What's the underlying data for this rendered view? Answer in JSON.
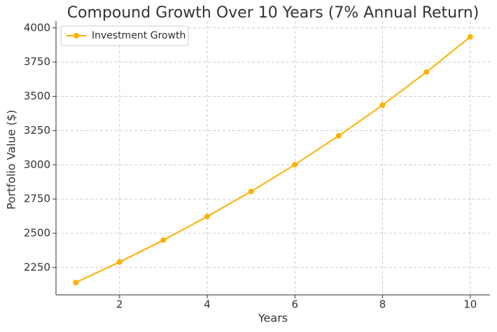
{
  "chart_data": {
    "type": "line",
    "title": "Compound Growth Over 10 Years (7% Annual Return)",
    "x_label": "Years",
    "y_label": "Portfolio Value ($)",
    "x": [
      1,
      2,
      3,
      4,
      5,
      6,
      7,
      8,
      9,
      10
    ],
    "series": [
      {
        "name": "Investment Growth",
        "color": "#ffb000",
        "values": [
          2140,
          2290,
          2450,
          2622,
          2805,
          3001,
          3212,
          3436,
          3677,
          3934
        ]
      }
    ],
    "xlim": [
      0.55,
      10.45
    ],
    "ylim": [
      2050,
      4050
    ],
    "xticks": [
      2,
      4,
      6,
      8,
      10
    ],
    "yticks": [
      2250,
      2500,
      2750,
      3000,
      3250,
      3500,
      3750,
      4000
    ],
    "grid": true,
    "legend": "upper left"
  }
}
